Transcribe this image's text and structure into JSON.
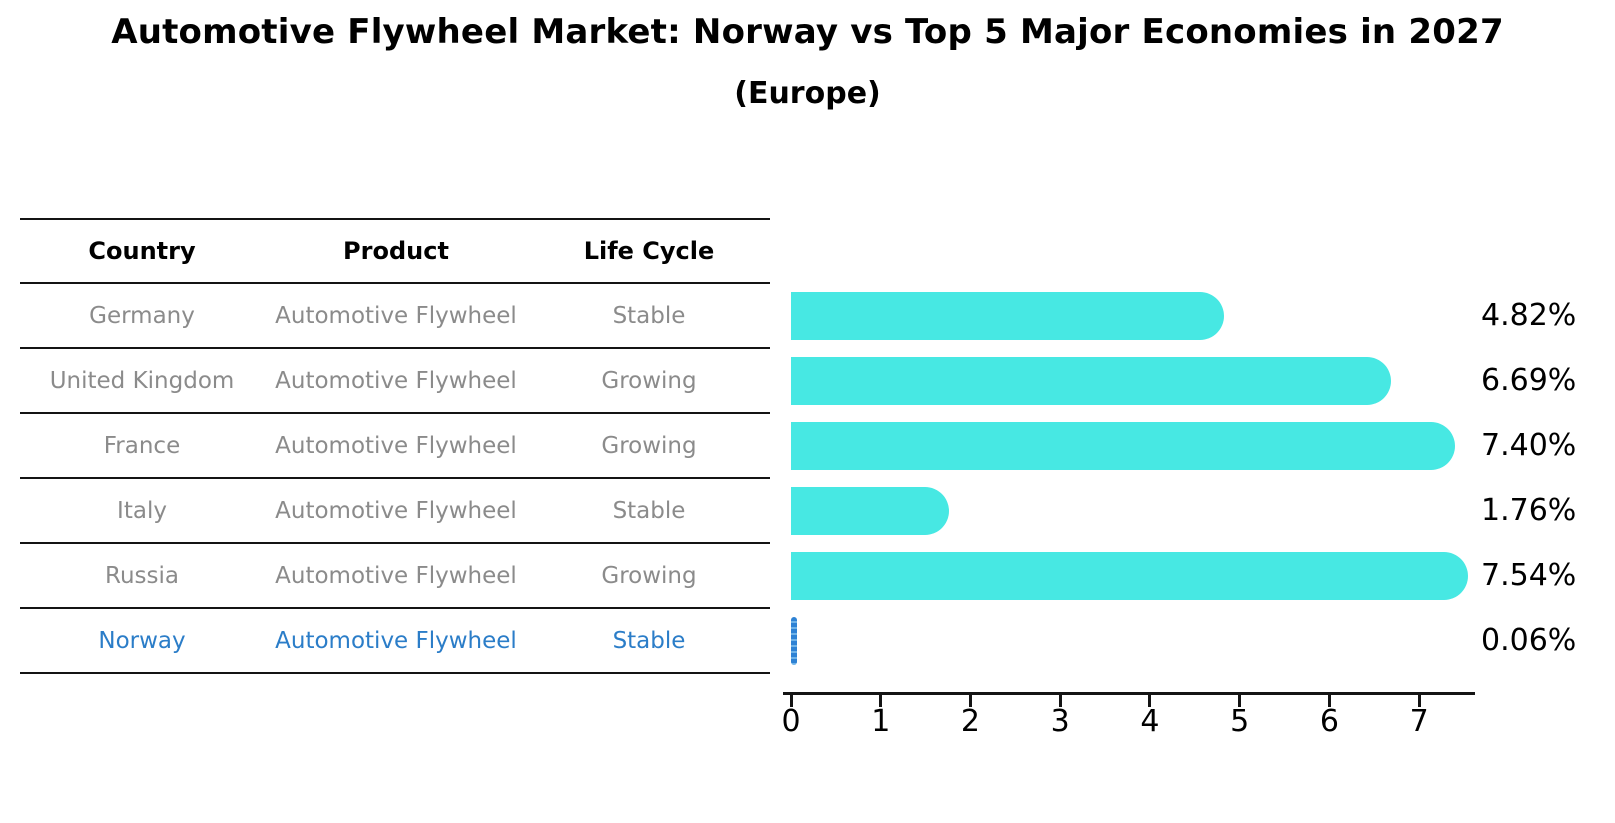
{
  "title": "Automotive Flywheel Market: Norway vs Top 5 Major Economies in 2027",
  "subtitle": "(Europe)",
  "table": {
    "headers": {
      "country": "Country",
      "product": "Product",
      "life_cycle": "Life Cycle"
    },
    "rows": [
      {
        "country": "Germany",
        "product": "Automotive Flywheel",
        "life_cycle": "Stable",
        "highlight": false
      },
      {
        "country": "United Kingdom",
        "product": "Automotive Flywheel",
        "life_cycle": "Growing",
        "highlight": false
      },
      {
        "country": "France",
        "product": "Automotive Flywheel",
        "life_cycle": "Growing",
        "highlight": false
      },
      {
        "country": "Italy",
        "product": "Automotive Flywheel",
        "life_cycle": "Stable",
        "highlight": false
      },
      {
        "country": "Russia",
        "product": "Automotive Flywheel",
        "life_cycle": "Growing",
        "highlight": false
      },
      {
        "country": "Norway",
        "product": "Automotive Flywheel",
        "life_cycle": "Stable",
        "highlight": true
      }
    ]
  },
  "chart_data": {
    "type": "bar",
    "orientation": "horizontal",
    "title": "Automotive Flywheel Market: Norway vs Top 5 Major Economies in 2027",
    "subtitle": "(Europe)",
    "categories": [
      "Germany",
      "United Kingdom",
      "France",
      "Italy",
      "Russia",
      "Norway"
    ],
    "values": [
      4.82,
      6.69,
      7.4,
      1.76,
      7.54,
      0.06
    ],
    "value_labels": [
      "4.82%",
      "6.69%",
      "7.40%",
      "1.76%",
      "7.54%",
      "0.06%"
    ],
    "unit": "%",
    "xticks": [
      0,
      1,
      2,
      3,
      4,
      5,
      6,
      7
    ],
    "xlim": [
      0,
      7.6
    ],
    "grid": false,
    "legend": false,
    "highlight_index": 5,
    "bar_color": "#47e8e3",
    "highlight_color": "#2e82d4"
  },
  "colors": {
    "background": "#ffffff",
    "text": "#000000",
    "muted_text": "#8b8b8b",
    "highlight_text": "#2b7dc8",
    "line": "#141414"
  }
}
